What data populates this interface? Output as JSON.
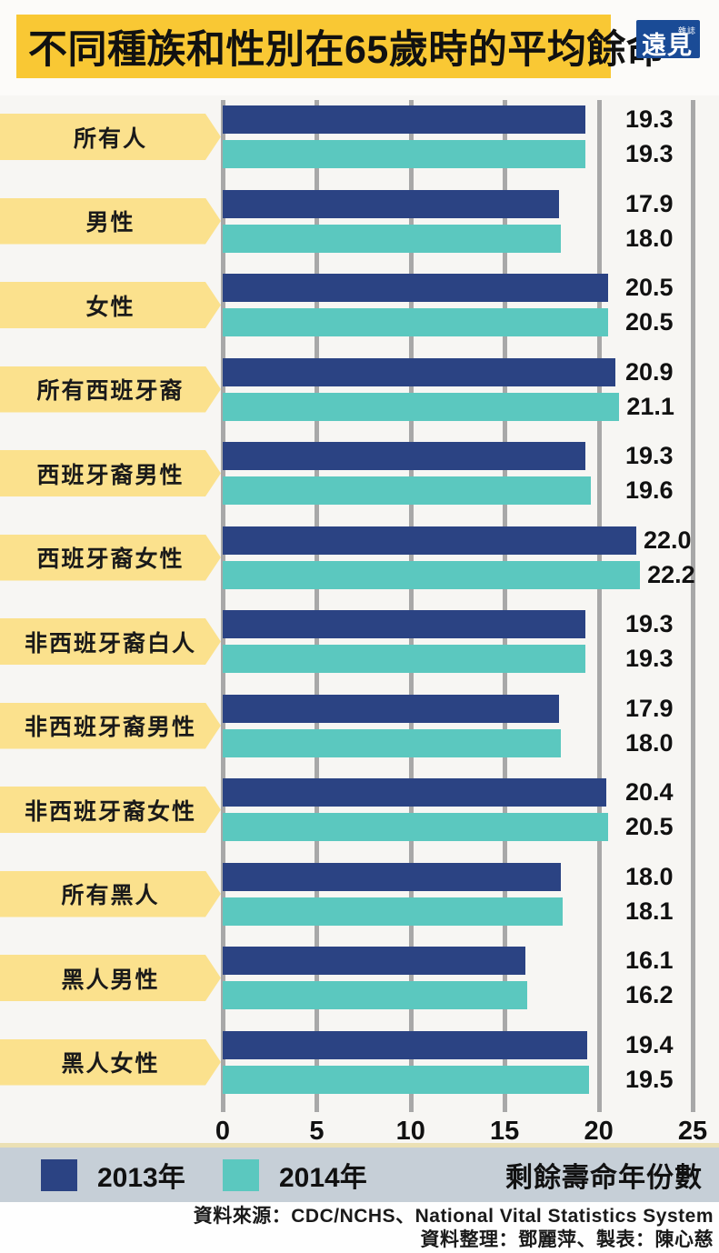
{
  "header": {
    "title": "不同種族和性別在65歲時的平均餘命",
    "logo": {
      "main": "遠見",
      "sub": "雜誌"
    }
  },
  "chart_data": {
    "type": "bar",
    "orientation": "horizontal",
    "title": "不同種族和性別在65歲時的平均餘命",
    "categories": [
      "所有人",
      "男性",
      "女性",
      "所有西班牙裔",
      "西班牙裔男性",
      "西班牙裔女性",
      "非西班牙裔白人",
      "非西班牙裔男性",
      "非西班牙裔女性",
      "所有黑人",
      "黑人男性",
      "黑人女性"
    ],
    "series": [
      {
        "name": "2013年",
        "color": "#2b4383",
        "values": [
          19.3,
          17.9,
          20.5,
          20.9,
          19.3,
          22.0,
          19.3,
          17.9,
          20.4,
          18.0,
          16.1,
          19.4
        ]
      },
      {
        "name": "2014年",
        "color": "#5bc8bf",
        "values": [
          19.3,
          18.0,
          20.5,
          21.1,
          19.6,
          22.2,
          19.3,
          18.0,
          20.5,
          18.1,
          16.2,
          19.5
        ]
      }
    ],
    "xlabel": "剩餘壽命年份數",
    "xlim": [
      0,
      25
    ],
    "xticks": [
      0,
      5,
      10,
      15,
      20,
      25
    ],
    "grid": true,
    "value_labels": true,
    "legend_position": "bottom"
  },
  "legend": {
    "items": [
      {
        "label": "2013年",
        "color": "#2b4383"
      },
      {
        "label": "2014年",
        "color": "#5bc8bf"
      }
    ],
    "axis_note": "剩餘壽命年份數"
  },
  "footer": {
    "source_line": "資料來源：CDC/NCHS、National Vital Statistics System",
    "credit_line": "資料整理：鄧麗萍、製表：陳心慈"
  },
  "colors": {
    "title_background": "#f9c834",
    "category_label_background": "#fbe18d",
    "bar_2013": "#2b4383",
    "bar_2014": "#5bc8bf",
    "gridline": "#a8a8a8",
    "legend_band_background": "#c6cfd7",
    "logo_background": "#1a4b96",
    "page_background": "#f7f6f3"
  }
}
